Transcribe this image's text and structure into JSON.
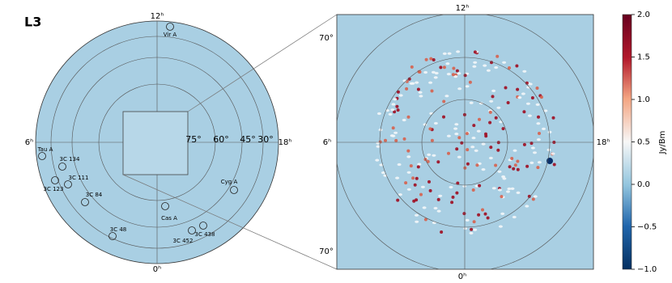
{
  "panel_label": "L3",
  "left_panel": {
    "hour_labels": {
      "top": "12ʰ",
      "bottom": "0ʰ",
      "left": "6ʰ",
      "right": "18ʰ"
    },
    "ring_labels": [
      "75°",
      "60°",
      "45°",
      "30°"
    ],
    "sources": [
      "Vir A",
      "Tau A",
      "3C 134",
      "3C 111",
      "3C 123",
      "3C 84",
      "Cyg A",
      "Cas A",
      "3C 48",
      "3C 452",
      "3C 438"
    ]
  },
  "right_panel": {
    "hour_labels": {
      "top": "12ʰ",
      "bottom": "0ʰ",
      "left": "6ʰ",
      "right": "18ʰ"
    },
    "dec_labels": {
      "top": "70°",
      "bottom": "70°"
    }
  },
  "colorbar": {
    "label": "Jy/Bm",
    "lim": [
      -1,
      2
    ],
    "ticks": [
      {
        "value": 2,
        "label": "2.0"
      },
      {
        "value": 1.5,
        "label": "1.5"
      },
      {
        "value": 1,
        "label": "1.0"
      },
      {
        "value": 0.5,
        "label": "0.5"
      },
      {
        "value": 0,
        "label": "0.0"
      },
      {
        "value": -0.5,
        "label": "−0.5"
      },
      {
        "value": -1,
        "label": "−1.0"
      }
    ]
  }
}
